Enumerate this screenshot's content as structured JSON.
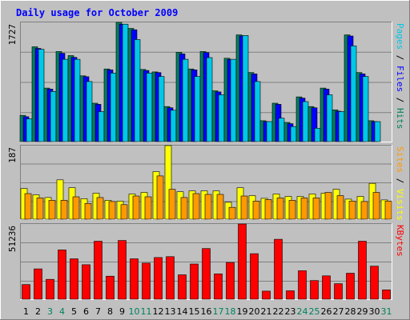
{
  "chart_data": [
    {
      "type": "bar",
      "title": "Daily usage for October 2009",
      "categories": [
        "1",
        "2",
        "3",
        "4",
        "5",
        "6",
        "7",
        "8",
        "9",
        "10",
        "11",
        "12",
        "13",
        "14",
        "15",
        "16",
        "17",
        "18",
        "19",
        "20",
        "21",
        "22",
        "23",
        "24",
        "25",
        "26",
        "27",
        "28",
        "29",
        "30",
        "31"
      ],
      "weekend_days": [
        "3",
        "4",
        "10",
        "11",
        "17",
        "18",
        "24",
        "25",
        "31"
      ],
      "panel": "pages-files-hits",
      "ymax_label": "1727",
      "ylim": [
        0,
        1727
      ],
      "right_label": {
        "parts": [
          "Pages",
          " / ",
          "Files",
          " / ",
          "Hits"
        ],
        "colors": [
          "#00c8e6",
          "#000000",
          "#0000ff",
          "#000000",
          "#00805c"
        ]
      },
      "series": [
        {
          "name": "Hits",
          "color": "#00805c",
          "values": [
            380,
            1374,
            775,
            1305,
            1246,
            953,
            556,
            1052,
            1727,
            1640,
            1045,
            1010,
            508,
            1293,
            1052,
            1305,
            736,
            1208,
            1546,
            1000,
            302,
            556,
            278,
            648,
            508,
            775,
            460,
            1546,
            1000,
            302,
            0
          ]
        },
        {
          "name": "Files",
          "color": "#0000ff",
          "values": [
            360,
            1350,
            760,
            1280,
            1220,
            940,
            540,
            1040,
            1700,
            1620,
            1030,
            1000,
            490,
            1270,
            1040,
            1290,
            720,
            1190,
            1530,
            980,
            290,
            540,
            260,
            630,
            490,
            760,
            440,
            1530,
            980,
            290,
            0
          ]
        },
        {
          "name": "Pages",
          "color": "#00c8e6",
          "values": [
            330,
            1338,
            727,
            1193,
            1193,
            870,
            435,
            993,
            1702,
            1479,
            993,
            944,
            454,
            1193,
            944,
            1217,
            678,
            1193,
            1538,
            870,
            290,
            340,
            218,
            580,
            193,
            678,
            435,
            1387,
            944,
            290,
            0
          ]
        }
      ]
    },
    {
      "type": "bar",
      "panel": "visits-sites",
      "ymax_label": "187",
      "ylim": [
        0,
        187
      ],
      "right_label": {
        "parts": [
          "Sites",
          " / ",
          "Visits"
        ],
        "colors": [
          "#ff9900",
          "#000000",
          "#ffff00"
        ]
      },
      "series": [
        {
          "name": "Visits",
          "color": "#ffff00",
          "values": [
            78,
            62,
            55,
            100,
            80,
            52,
            66,
            48,
            46,
            64,
            68,
            121,
            187,
            70,
            72,
            72,
            72,
            43,
            80,
            60,
            53,
            64,
            58,
            58,
            64,
            66,
            76,
            51,
            58,
            91,
            49
          ]
        },
        {
          "name": "Sites",
          "color": "#ff9900",
          "values": [
            65,
            54,
            48,
            48,
            57,
            40,
            55,
            45,
            37,
            59,
            57,
            110,
            76,
            55,
            65,
            63,
            63,
            30,
            59,
            46,
            50,
            54,
            48,
            54,
            54,
            68,
            60,
            46,
            45,
            68,
            46
          ]
        }
      ]
    },
    {
      "type": "bar",
      "panel": "kbytes",
      "ymax_label": "51236",
      "ylim": [
        0,
        51236
      ],
      "right_label": {
        "parts": [
          "KBytes"
        ],
        "colors": [
          "#ff0000"
        ]
      },
      "series": [
        {
          "name": "KBytes",
          "color": "#ff0000",
          "values": [
            10000,
            20650,
            13500,
            33600,
            27500,
            23500,
            39500,
            15700,
            40000,
            27500,
            24600,
            28400,
            29000,
            16600,
            24000,
            34500,
            17300,
            25000,
            51236,
            31000,
            5500,
            40800,
            5700,
            19400,
            12700,
            15900,
            10600,
            17700,
            39500,
            22500,
            6400
          ]
        }
      ]
    }
  ]
}
